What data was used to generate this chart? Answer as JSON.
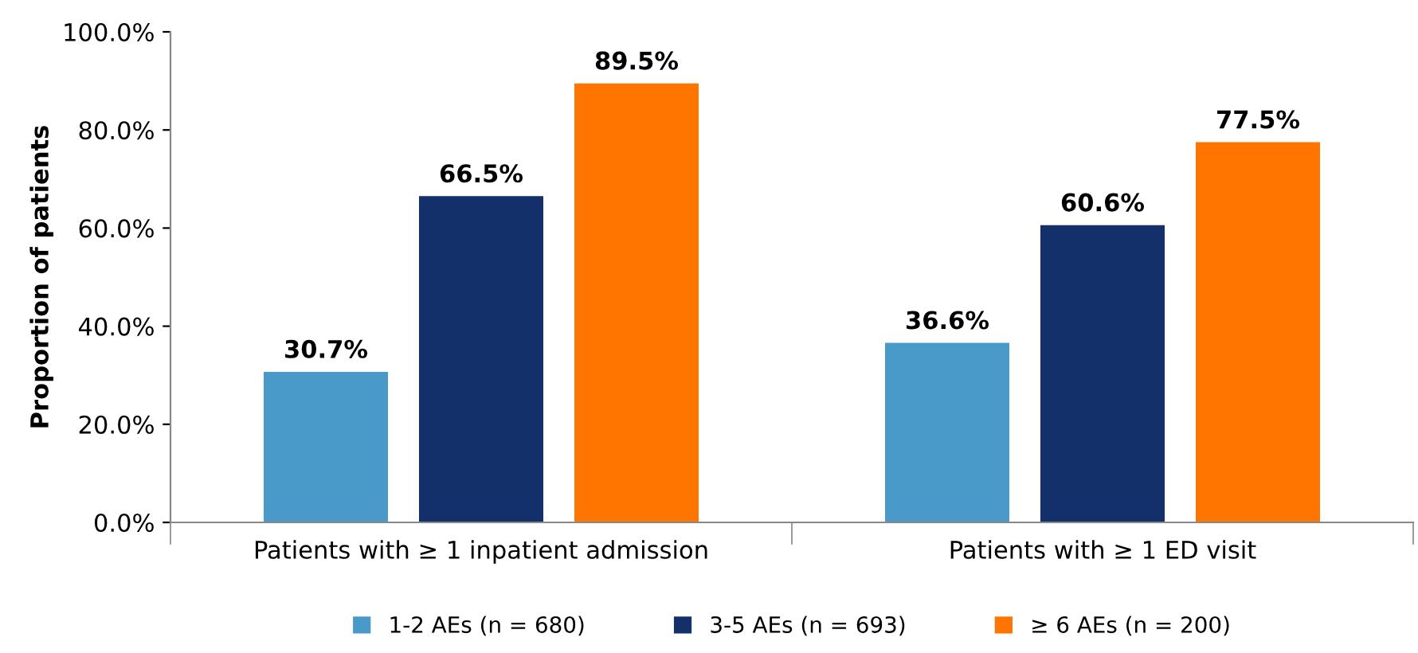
{
  "chart_data": {
    "type": "bar",
    "ylabel": "Proportion of patients",
    "categories": [
      "Patients with ≥ 1 inpatient admission",
      "Patients with ≥ 1 ED visit"
    ],
    "series": [
      {
        "name": "1-2 AEs (n = 680)",
        "color": "#4a9ac9",
        "values": [
          30.7,
          36.6
        ],
        "value_labels": [
          "30.7%",
          "36.6%"
        ]
      },
      {
        "name": "3-5 AEs (n = 693)",
        "color": "#14306b",
        "values": [
          66.5,
          60.6
        ],
        "value_labels": [
          "66.5%",
          "60.6%"
        ]
      },
      {
        "name": "≥ 6 AEs (n = 200)",
        "color": "#ff7500",
        "values": [
          89.5,
          77.5
        ],
        "value_labels": [
          "89.5%",
          "77.5%"
        ]
      }
    ],
    "ylim": [
      0,
      100
    ],
    "yticks": [
      {
        "value": 0,
        "label": "0.0%"
      },
      {
        "value": 20,
        "label": "20.0%"
      },
      {
        "value": 40,
        "label": "40.0%"
      },
      {
        "value": 60,
        "label": "60.0%"
      },
      {
        "value": 80,
        "label": "80.0%"
      },
      {
        "value": 100,
        "label": "100.0%"
      }
    ],
    "grid": false,
    "legend": "bottom"
  }
}
